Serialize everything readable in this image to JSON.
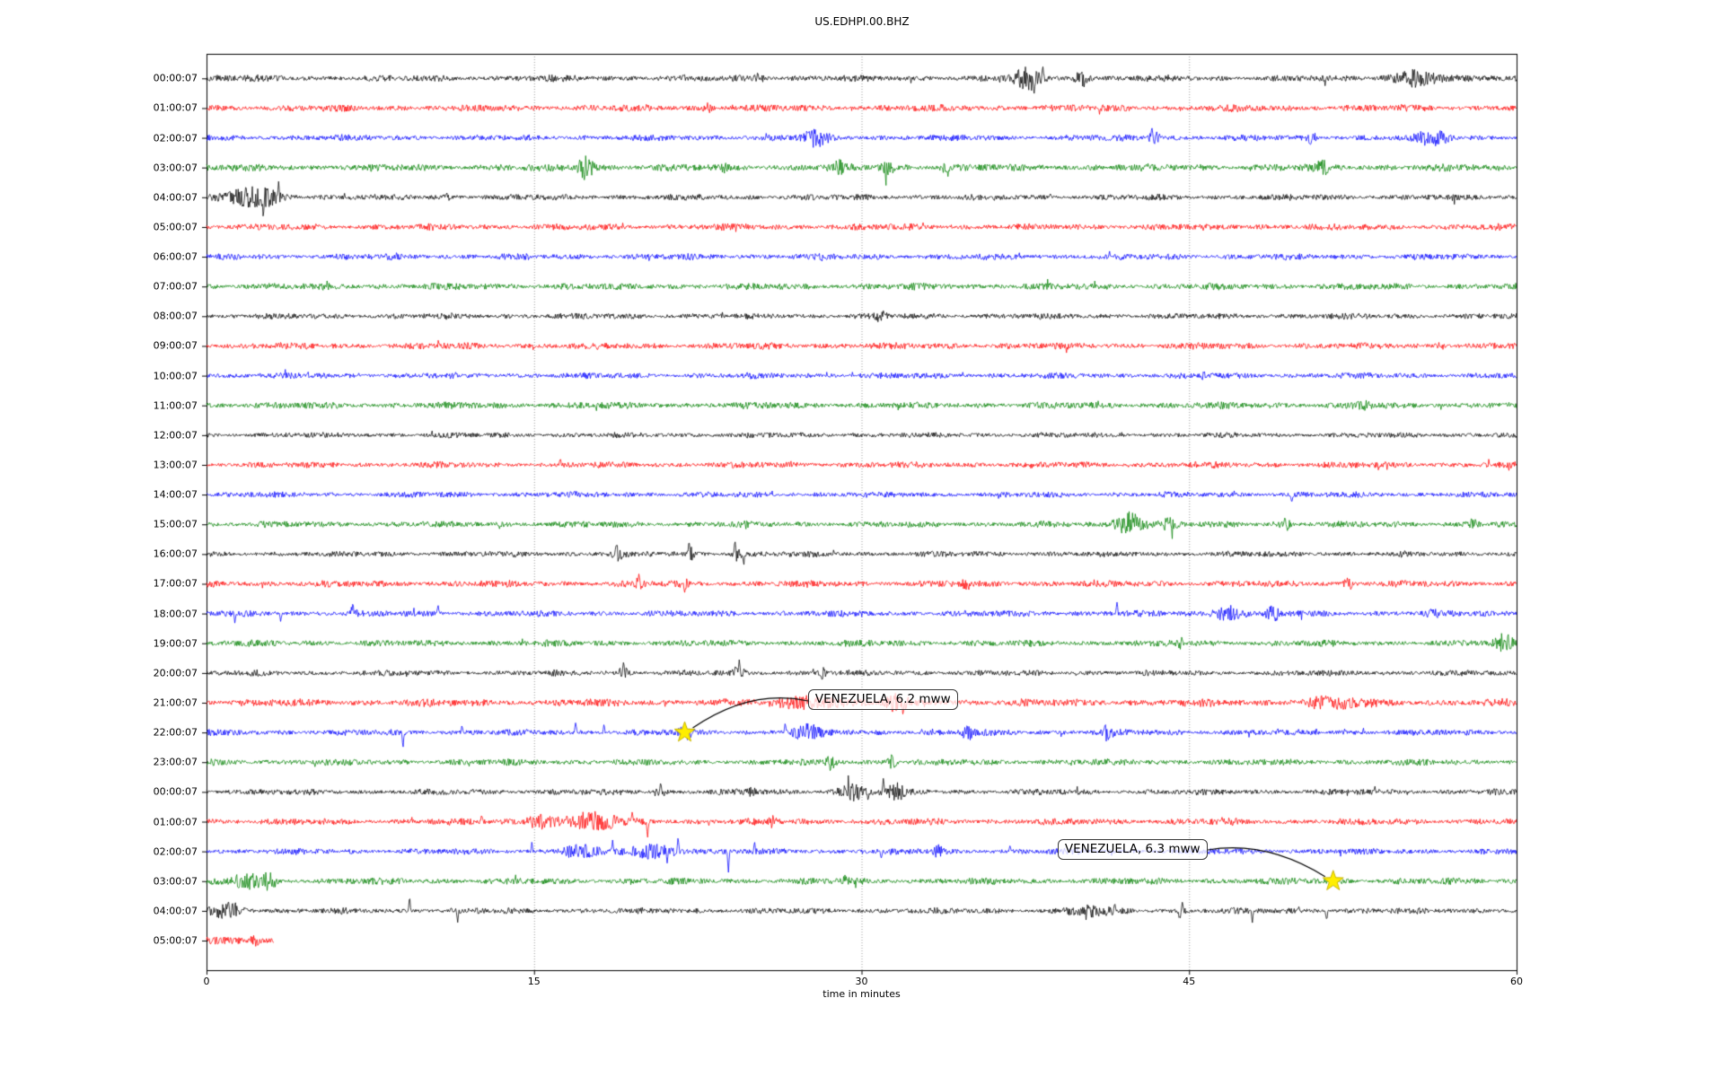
{
  "window": {
    "title": "US.EDHPI.00.BHZ"
  },
  "chart_data": {
    "type": "line",
    "subtype": "seismogram-dayplot",
    "title": "US.EDHPI.00.BHZ",
    "xlabel": "time in minutes",
    "xlim": [
      0,
      60
    ],
    "xticks": [
      "0",
      "15",
      "30",
      "45",
      "60"
    ],
    "xtick_values": [
      0,
      15,
      30,
      45,
      60
    ],
    "grid": {
      "vertical_dotted_at_minutes": [
        15,
        30,
        45
      ],
      "color": "#999999"
    },
    "trace_color_cycle": [
      "#000000",
      "#ff0000",
      "#0000ff",
      "#008000"
    ],
    "background": "#ffffff",
    "rows": [
      {
        "label": "00:00:07",
        "color": "#000000",
        "base": 3.6,
        "end": 60,
        "events": [
          [
            25.3,
            0.4,
            5
          ],
          [
            37.6,
            1.1,
            12
          ],
          [
            40.0,
            0.6,
            8
          ],
          [
            55.3,
            2.0,
            8
          ]
        ],
        "spikes": [
          [
            37.9,
            -20
          ],
          [
            38.3,
            16
          ]
        ]
      },
      {
        "label": "01:00:07",
        "color": "#ff0000",
        "base": 3.8,
        "end": 60,
        "events": [
          [
            23.0,
            0.5,
            4
          ]
        ],
        "spikes": []
      },
      {
        "label": "02:00:07",
        "color": "#0000ff",
        "base": 3.4,
        "end": 60,
        "events": [
          [
            27.9,
            1.0,
            8
          ],
          [
            43.4,
            0.5,
            7
          ],
          [
            50.6,
            0.4,
            6
          ],
          [
            56.2,
            1.4,
            7
          ]
        ],
        "spikes": [
          [
            43.3,
            12
          ]
        ]
      },
      {
        "label": "03:00:07",
        "color": "#008000",
        "base": 4.0,
        "end": 60,
        "events": [
          [
            17.4,
            0.7,
            13
          ],
          [
            23.7,
            0.3,
            5
          ],
          [
            28.9,
            0.5,
            7
          ],
          [
            31.2,
            0.6,
            7
          ],
          [
            33.8,
            0.4,
            5
          ],
          [
            51.1,
            0.5,
            7
          ]
        ],
        "spikes": [
          [
            17.3,
            -16
          ]
        ]
      },
      {
        "label": "04:00:07",
        "color": "#000000",
        "base": 3.3,
        "end": 60,
        "events": [
          [
            2.2,
            2.2,
            11
          ],
          [
            11.0,
            0.3,
            4
          ]
        ],
        "spikes": [
          [
            1.8,
            14
          ],
          [
            2.6,
            -24
          ],
          [
            3.3,
            17
          ]
        ]
      },
      {
        "label": "05:00:07",
        "color": "#ff0000",
        "base": 3.6,
        "end": 60,
        "events": [],
        "spikes": []
      },
      {
        "label": "06:00:07",
        "color": "#0000ff",
        "base": 3.4,
        "end": 60,
        "events": [],
        "spikes": []
      },
      {
        "label": "07:00:07",
        "color": "#008000",
        "base": 3.7,
        "end": 60,
        "events": [],
        "spikes": []
      },
      {
        "label": "08:00:07",
        "color": "#000000",
        "base": 3.3,
        "end": 60,
        "events": [
          [
            30.9,
            0.5,
            4
          ]
        ],
        "spikes": []
      },
      {
        "label": "09:00:07",
        "color": "#ff0000",
        "base": 3.6,
        "end": 60,
        "events": [],
        "spikes": []
      },
      {
        "label": "10:00:07",
        "color": "#0000ff",
        "base": 3.3,
        "end": 60,
        "events": [
          [
            45.7,
            0.4,
            4
          ]
        ],
        "spikes": []
      },
      {
        "label": "11:00:07",
        "color": "#008000",
        "base": 3.7,
        "end": 60,
        "events": [
          [
            53.0,
            0.6,
            4
          ]
        ],
        "spikes": []
      },
      {
        "label": "12:00:07",
        "color": "#000000",
        "base": 3.0,
        "end": 60,
        "events": [],
        "spikes": []
      },
      {
        "label": "13:00:07",
        "color": "#ff0000",
        "base": 3.4,
        "end": 60,
        "events": [],
        "spikes": [
          [
            16.2,
            8
          ]
        ]
      },
      {
        "label": "14:00:07",
        "color": "#0000ff",
        "base": 3.1,
        "end": 60,
        "events": [],
        "spikes": [
          [
            49.7,
            -9
          ]
        ]
      },
      {
        "label": "15:00:07",
        "color": "#008000",
        "base": 3.4,
        "end": 60,
        "events": [
          [
            42.3,
            1.3,
            13
          ],
          [
            44.0,
            0.7,
            8
          ],
          [
            49.4,
            0.4,
            6
          ],
          [
            58.0,
            0.4,
            5
          ]
        ],
        "spikes": []
      },
      {
        "label": "16:00:07",
        "color": "#000000",
        "base": 3.2,
        "end": 60,
        "events": [
          [
            18.8,
            0.4,
            7
          ],
          [
            22.2,
            0.3,
            6
          ],
          [
            24.3,
            0.4,
            8
          ]
        ],
        "spikes": [
          [
            22.1,
            15
          ],
          [
            24.2,
            18
          ],
          [
            24.6,
            -13
          ]
        ]
      },
      {
        "label": "17:00:07",
        "color": "#ff0000",
        "base": 3.6,
        "end": 60,
        "events": [
          [
            19.8,
            0.3,
            8
          ],
          [
            21.9,
            0.3,
            8
          ],
          [
            34.8,
            0.4,
            5
          ],
          [
            52.3,
            0.4,
            5
          ]
        ],
        "spikes": [
          [
            19.8,
            12
          ],
          [
            21.9,
            -10
          ]
        ]
      },
      {
        "label": "18:00:07",
        "color": "#0000ff",
        "base": 3.4,
        "end": 60,
        "events": [
          [
            6.7,
            0.3,
            6
          ],
          [
            46.8,
            1.4,
            8
          ],
          [
            48.9,
            0.6,
            7
          ],
          [
            56.2,
            0.4,
            5
          ]
        ],
        "spikes": [
          [
            1.3,
            -12
          ],
          [
            3.4,
            -9
          ],
          [
            6.7,
            13
          ],
          [
            10.6,
            10
          ],
          [
            41.7,
            13
          ]
        ]
      },
      {
        "label": "19:00:07",
        "color": "#008000",
        "base": 3.5,
        "end": 60,
        "events": [
          [
            44.6,
            0.3,
            5
          ],
          [
            59.4,
            0.8,
            9
          ]
        ],
        "spikes": []
      },
      {
        "label": "20:00:07",
        "color": "#000000",
        "base": 3.2,
        "end": 60,
        "events": [
          [
            19.1,
            0.4,
            8
          ],
          [
            24.4,
            0.4,
            9
          ],
          [
            28.2,
            0.3,
            5
          ]
        ],
        "spikes": [
          [
            19.1,
            13
          ],
          [
            24.4,
            15
          ]
        ]
      },
      {
        "label": "21:00:07",
        "color": "#ff0000",
        "base": 4.2,
        "end": 60,
        "events": [
          [
            27.6,
            2.8,
            6
          ],
          [
            31.6,
            0.9,
            7
          ],
          [
            51.5,
            3.0,
            4
          ]
        ],
        "spikes": [
          [
            31.9,
            -13
          ]
        ]
      },
      {
        "label": "22:00:07",
        "color": "#0000ff",
        "base": 3.4,
        "end": 60,
        "events": [
          [
            21.9,
            0.5,
            6
          ],
          [
            27.5,
            1.2,
            8
          ],
          [
            34.9,
            0.5,
            8
          ],
          [
            41.3,
            0.4,
            9
          ]
        ],
        "spikes": [
          [
            9.0,
            -17
          ],
          [
            11.7,
            9
          ],
          [
            16.9,
            12
          ],
          [
            18.2,
            10
          ],
          [
            26.5,
            11
          ]
        ]
      },
      {
        "label": "23:00:07",
        "color": "#008000",
        "base": 3.5,
        "end": 60,
        "events": [
          [
            28.6,
            0.4,
            7
          ],
          [
            31.4,
            0.4,
            7
          ]
        ],
        "spikes": []
      },
      {
        "label": "00:00:07",
        "color": "#000000",
        "base": 3.3,
        "end": 60,
        "events": [
          [
            20.8,
            0.3,
            8
          ],
          [
            25.0,
            0.3,
            5
          ],
          [
            29.6,
            1.4,
            8
          ],
          [
            31.6,
            0.8,
            8
          ]
        ],
        "spikes": [
          [
            20.8,
            13
          ],
          [
            30.3,
            -12
          ],
          [
            31.0,
            15
          ]
        ]
      },
      {
        "label": "01:00:07",
        "color": "#ff0000",
        "base": 3.7,
        "end": 60,
        "events": [
          [
            15.3,
            1.2,
            7
          ],
          [
            17.6,
            2.5,
            8
          ],
          [
            25.9,
            0.3,
            5
          ]
        ],
        "spikes": [
          [
            12.6,
            8
          ],
          [
            17.8,
            11
          ],
          [
            19.5,
            12
          ],
          [
            20.2,
            -19
          ]
        ]
      },
      {
        "label": "02:00:07",
        "color": "#0000ff",
        "base": 3.3,
        "end": 60,
        "events": [
          [
            17.0,
            1.5,
            6
          ],
          [
            20.5,
            2.5,
            6
          ],
          [
            33.5,
            0.5,
            5
          ]
        ],
        "spikes": [
          [
            14.9,
            10
          ],
          [
            18.6,
            13
          ],
          [
            21.6,
            17
          ],
          [
            23.9,
            -26
          ],
          [
            25.1,
            10
          ],
          [
            30.9,
            -8
          ],
          [
            36.8,
            8
          ]
        ]
      },
      {
        "label": "03:00:07",
        "color": "#008000",
        "base": 3.6,
        "end": 60,
        "events": [
          [
            1.9,
            1.2,
            9
          ],
          [
            2.9,
            0.5,
            11
          ],
          [
            29.3,
            0.3,
            5
          ]
        ],
        "spikes": []
      },
      {
        "label": "04:00:07",
        "color": "#000000",
        "base": 3.3,
        "end": 60,
        "events": [
          [
            1.0,
            1.4,
            9
          ],
          [
            40.5,
            2.0,
            5
          ],
          [
            44.6,
            0.4,
            6
          ]
        ],
        "spikes": [
          [
            1.0,
            12
          ],
          [
            9.3,
            19
          ],
          [
            11.5,
            -15
          ],
          [
            41.6,
            9
          ],
          [
            44.7,
            11
          ],
          [
            47.9,
            -13
          ],
          [
            51.3,
            -11
          ]
        ]
      },
      {
        "label": "05:00:07",
        "color": "#ff0000",
        "base": 3.8,
        "end": 3.1,
        "events": [
          [
            2.2,
            0.4,
            5
          ]
        ],
        "spikes": []
      }
    ],
    "annotations": [
      {
        "label": "VENEZUELA, 6.2 mww",
        "star_row": 22,
        "star_minute": 21.9,
        "box_left_minute": 27.55,
        "box_row_y": 20.88,
        "connect_side": "left",
        "star_color": "#ffee00"
      },
      {
        "label": "VENEZUELA, 6.3 mww",
        "star_row": 27,
        "star_minute": 51.6,
        "box_left_minute": 38.98,
        "box_row_y": 25.95,
        "connect_side": "right",
        "star_color": "#ffee00"
      }
    ]
  }
}
